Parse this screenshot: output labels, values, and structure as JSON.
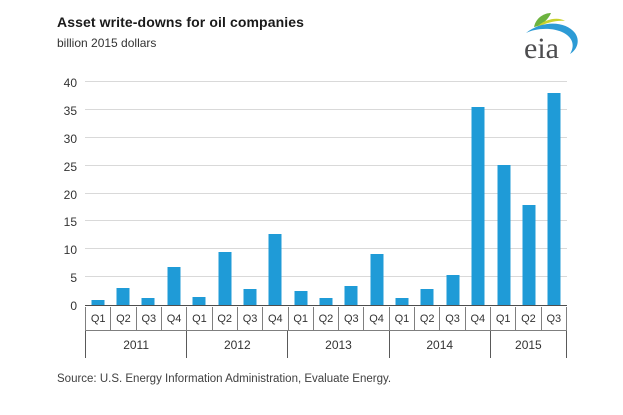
{
  "header": {
    "title": "Asset write-downs for oil companies",
    "subtitle": "billion 2015 dollars"
  },
  "logo": {
    "text": "eia"
  },
  "source": "Source:  U.S. Energy Information Administration, Evaluate Energy.",
  "colors": {
    "bar": "#1f9bd7",
    "gridline": "#d9d9d9",
    "axis": "#4d4d4d",
    "cell_border": "#7f7f7f",
    "logo_green": "#6cb33f",
    "logo_yellow": "#c9d22d",
    "logo_blue": "#2d9bd5",
    "logo_text": "#4d4d4f"
  },
  "chart_data": {
    "type": "bar",
    "title": "Asset write-downs for oil companies",
    "xlabel": "",
    "ylabel": "billion 2015 dollars",
    "ylim": [
      0,
      40
    ],
    "ytick_step": 5,
    "grid": true,
    "legend": "none",
    "categories": [
      "Q1",
      "Q2",
      "Q3",
      "Q4",
      "Q1",
      "Q2",
      "Q3",
      "Q4",
      "Q1",
      "Q2",
      "Q3",
      "Q4",
      "Q1",
      "Q2",
      "Q3",
      "Q4",
      "Q1",
      "Q2",
      "Q3"
    ],
    "values": [
      0.9,
      3.1,
      1.3,
      6.8,
      1.4,
      9.5,
      2.9,
      12.7,
      2.6,
      1.3,
      3.4,
      9.1,
      1.2,
      2.9,
      5.4,
      35.5,
      25.1,
      18.0,
      38.0
    ],
    "groups": [
      {
        "year": "2011",
        "quarters": [
          "Q1",
          "Q2",
          "Q3",
          "Q4"
        ],
        "values": [
          0.9,
          3.1,
          1.3,
          6.8
        ]
      },
      {
        "year": "2012",
        "quarters": [
          "Q1",
          "Q2",
          "Q3",
          "Q4"
        ],
        "values": [
          1.4,
          9.5,
          2.9,
          12.7
        ]
      },
      {
        "year": "2013",
        "quarters": [
          "Q1",
          "Q2",
          "Q3",
          "Q4"
        ],
        "values": [
          2.6,
          1.3,
          3.4,
          9.1
        ]
      },
      {
        "year": "2014",
        "quarters": [
          "Q1",
          "Q2",
          "Q3",
          "Q4"
        ],
        "values": [
          1.2,
          2.9,
          5.4,
          35.5
        ]
      },
      {
        "year": "2015",
        "quarters": [
          "Q1",
          "Q2",
          "Q3"
        ],
        "values": [
          25.1,
          18.0,
          38.0
        ]
      }
    ]
  }
}
